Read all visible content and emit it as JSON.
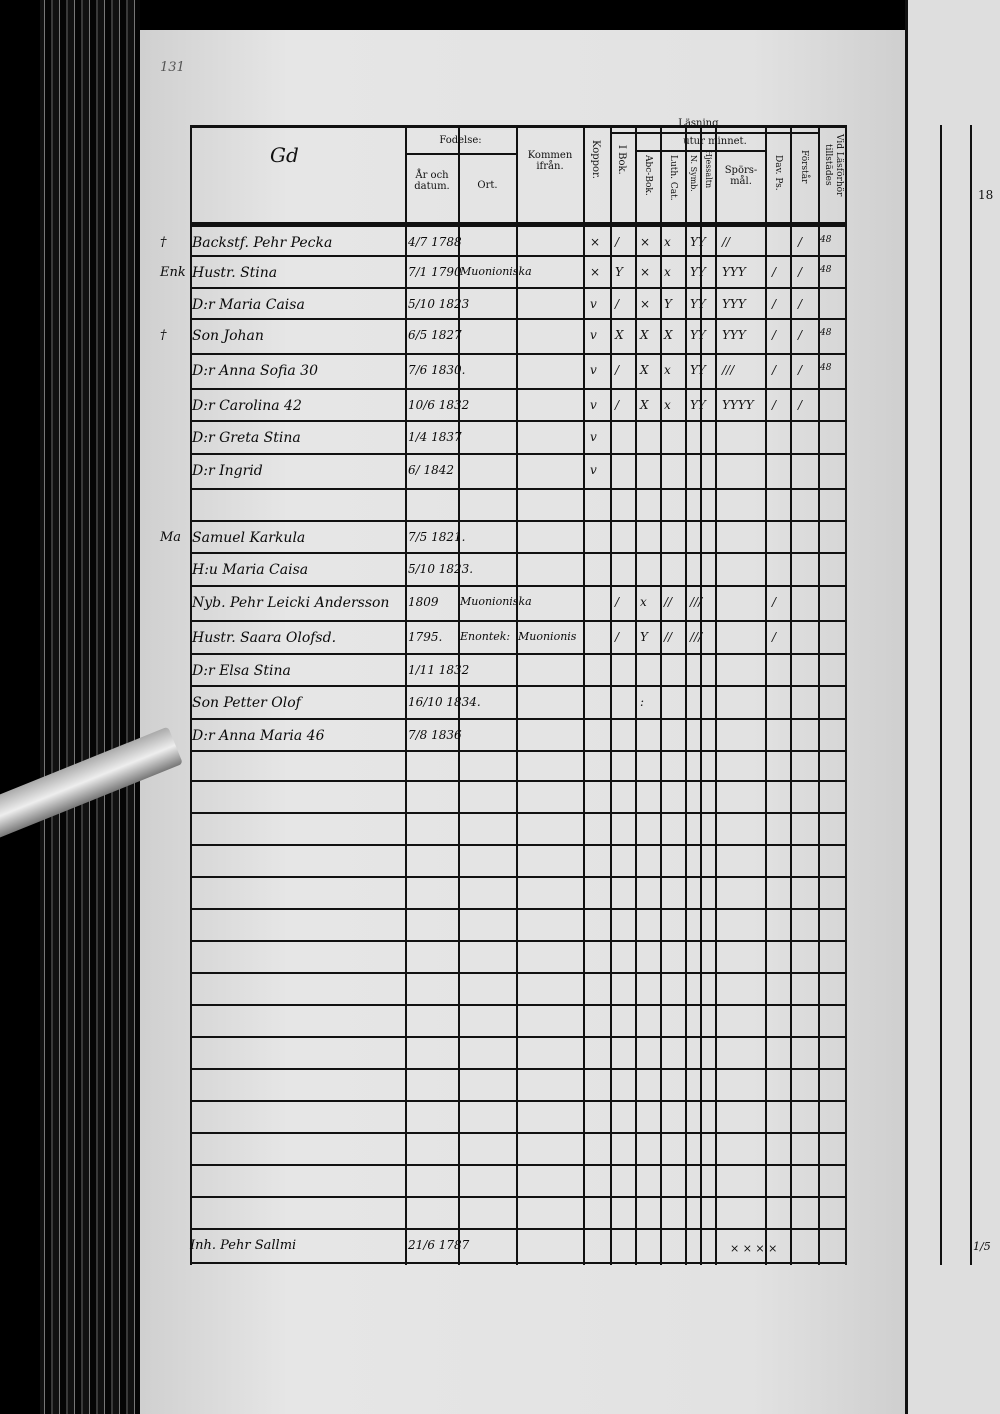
{
  "page_number": "131",
  "headers": {
    "name_col": "Gd",
    "fodelse": "Fodelse:",
    "ar_och_datum": "År och datum.",
    "ort": "Ort.",
    "kommen_ifran": "Kommen ifrån.",
    "koppor": "Koppor.",
    "lasning": "Läsning,",
    "utur_minnet": "utur minnet.",
    "i_bok": "I Bok.",
    "abc_bok": "Abc-Bok.",
    "luth_cat": "Luth. Cat.",
    "n_symb": "N. Symb.",
    "hjessaltn": "Hjessaltn",
    "spors_mal": "Spörs-mål.",
    "dav_ps": "Dav. Ps.",
    "forstar": "Förstår",
    "vid_lasforhor": "Vid Läsförhör tillstädes",
    "right_page_year": "18"
  },
  "rows": [
    {
      "margin": "†",
      "name": "Backstf. Pehr Pecka",
      "date": "4/7 1788",
      "ort": "",
      "from": "",
      "marks": [
        "×",
        "/",
        "×",
        "x",
        "YY",
        "//",
        "",
        "/"
      ],
      "note": "48"
    },
    {
      "margin": "Enk",
      "name": "Hustr. Stina",
      "date": "7/1 1790",
      "ort": "Muonioniska",
      "from": "",
      "marks": [
        "×",
        "Y",
        "×",
        "x",
        "YY",
        "YYY",
        "/",
        "/"
      ],
      "note": "48"
    },
    {
      "margin": "",
      "name": "D:r Maria Caisa",
      "date": "5/10 1823",
      "ort": "",
      "from": "",
      "marks": [
        "v",
        "/",
        "×",
        "Y",
        "YY",
        "YYY",
        "/",
        "/"
      ],
      "note": ""
    },
    {
      "margin": "†",
      "name": "Son Johan",
      "date": "6/5 1827",
      "ort": "",
      "from": "",
      "marks": [
        "v",
        "X",
        "X",
        "X",
        "YY",
        "YYY",
        "/",
        "/"
      ],
      "note": "48"
    },
    {
      "margin": "",
      "name": "D:r Anna Sofia 30",
      "date": "7/6 1830.",
      "ort": "",
      "from": "",
      "marks": [
        "v",
        "/",
        "X",
        "x",
        "YY",
        "///",
        "/",
        "/"
      ],
      "note": "48"
    },
    {
      "margin": "",
      "name": "D:r Carolina 42",
      "date": "10/6 1832",
      "ort": "",
      "from": "",
      "marks": [
        "v",
        "/",
        "X",
        "x",
        "YY",
        "YYYY",
        "/",
        "/"
      ],
      "note": ""
    },
    {
      "margin": "",
      "name": "D:r Greta Stina",
      "date": "1/4 1837",
      "ort": "",
      "from": "",
      "marks": [
        "v",
        "",
        "",
        "",
        "",
        "",
        "",
        ""
      ],
      "note": ""
    },
    {
      "margin": "",
      "name": "D:r Ingrid",
      "date": "6/ 1842",
      "ort": "",
      "from": "",
      "marks": [
        "v",
        "",
        "",
        "",
        "",
        "",
        "",
        ""
      ],
      "note": ""
    },
    {
      "margin": "",
      "name": "",
      "date": "",
      "ort": "",
      "from": "",
      "marks": [
        "",
        "",
        "",
        "",
        "",
        "",
        "",
        ""
      ],
      "note": ""
    },
    {
      "margin": "Ma",
      "name": "Samuel Karkula",
      "date": "7/5 1821.",
      "ort": "",
      "from": "",
      "marks": [
        "",
        "",
        "",
        "",
        "",
        "",
        "",
        ""
      ],
      "note": ""
    },
    {
      "margin": "",
      "name": "H:u Maria Caisa",
      "date": "5/10 1823.",
      "ort": "",
      "from": "",
      "marks": [
        "",
        "",
        "",
        "",
        "",
        "",
        "",
        ""
      ],
      "note": ""
    },
    {
      "margin": "",
      "name": "Nyb. Pehr Leicki Andersson",
      "date": "1809",
      "ort": "Muonioniska",
      "from": "",
      "marks": [
        "",
        "/",
        "x",
        "//",
        "///",
        "",
        "/",
        ""
      ],
      "note": ""
    },
    {
      "margin": "",
      "name": "Hustr. Saara Olofsd.",
      "date": "1795.",
      "ort": "Enontek:",
      "from": "Muonionis",
      "marks": [
        "",
        "/",
        "Y",
        "//",
        "///",
        "",
        "/",
        ""
      ],
      "note": ""
    },
    {
      "margin": "",
      "name": "D:r Elsa Stina",
      "date": "1/11 1832",
      "ort": "",
      "from": "",
      "marks": [
        "",
        "",
        "",
        "",
        "",
        "",
        "",
        ""
      ],
      "note": ""
    },
    {
      "margin": "",
      "name": "Son Petter Olof",
      "date": "16/10 1834.",
      "ort": "",
      "from": "",
      "marks": [
        "",
        "",
        ":",
        "",
        "",
        "",
        "",
        ""
      ],
      "note": ""
    },
    {
      "margin": "",
      "name": "D:r Anna Maria 46",
      "date": "7/8 1836",
      "ort": "",
      "from": "",
      "marks": [
        "",
        "",
        "",
        "",
        "",
        "",
        "",
        ""
      ],
      "note": ""
    }
  ],
  "bottom_row": {
    "name": "Inh. Pehr Sallmi",
    "date": "21/6 1787",
    "marks": "× × × ×",
    "right_note": "1/5"
  }
}
